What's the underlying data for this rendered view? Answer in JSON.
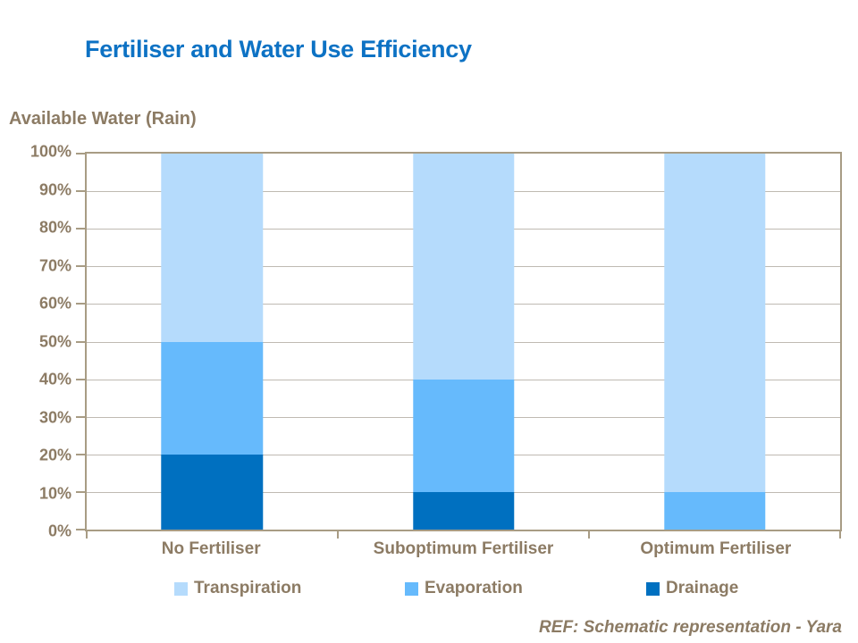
{
  "title": "Fertiliser and Water Use Efficiency",
  "axis_title": "Available Water (Rain)",
  "footer": "REF: Schematic representation - Yara",
  "colors": {
    "title": "#0D72C4",
    "text": "#8C7B64",
    "axis": "#A89C84",
    "gridline": "#BFBAB2"
  },
  "chart_data": {
    "type": "bar",
    "stacked": true,
    "title": "Fertiliser and Water Use Efficiency",
    "ylabel": "Available Water (Rain)",
    "xlabel": "",
    "ylim": [
      0,
      100
    ],
    "grid": true,
    "legend_position": "bottom",
    "yticks": [
      "100%",
      "90%",
      "80%",
      "70%",
      "60%",
      "50%",
      "40%",
      "30%",
      "20%",
      "10%",
      "0%"
    ],
    "categories": [
      "No Fertiliser",
      "Suboptimum Fertiliser",
      "Optimum Fertiliser"
    ],
    "series": [
      {
        "name": "Transpiration",
        "color": "#B5DBFC",
        "values": [
          50,
          60,
          90
        ]
      },
      {
        "name": "Evaporation",
        "color": "#66BAFC",
        "values": [
          30,
          30,
          10
        ]
      },
      {
        "name": "Drainage",
        "color": "#0070C0",
        "values": [
          20,
          10,
          0
        ]
      }
    ]
  }
}
